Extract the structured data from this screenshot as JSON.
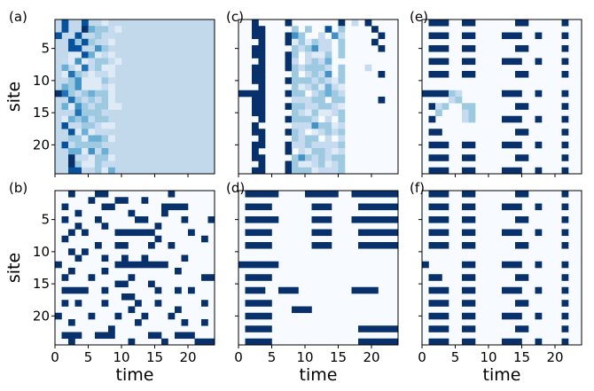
{
  "chart_data": {
    "type": "heatmap",
    "layout": {
      "rows": 2,
      "cols": 3
    },
    "xlabel": "time",
    "ylabel": "site",
    "xlim": [
      0,
      24
    ],
    "ylim": [
      24,
      1
    ],
    "xticks": [
      0,
      5,
      10,
      15,
      20
    ],
    "yticks": [
      5,
      10,
      15,
      20
    ],
    "colormap": {
      "low": "#f7fbff",
      "mid": "#6baed6",
      "high": "#08306b"
    },
    "panels": [
      {
        "label": "(a)",
        "position": [
          0,
          0
        ],
        "show_ylabel": true,
        "show_xlabel": false,
        "grid": [
          "070070010000000000000000",
          "070084332100000000000000",
          "702700322000000000000000",
          "007373021000000000000000",
          "007700530000000000000000",
          "001174121000000000000000",
          "021512332100000000000000",
          "040162311000000000000000",
          "016301221000000000000000",
          "003511132000000000000000",
          "043511121000000000000000",
          "963234331000000000000000",
          "006323231000000000000000",
          "041532331100000000000000",
          "000633320000000000000000",
          "014342330000000000000000",
          "072233211000000000000000",
          "007141220000000000000000",
          "003314431000000000000000",
          "072333300000000000000000",
          "004415240000000000000000",
          "008221331000000000000000",
          "008311322000000000000000",
          "007720314000000000000000"
        ],
        "background_level": 2
      },
      {
        "label": "(b)",
        "position": [
          1,
          0
        ],
        "show_ylabel": true,
        "show_xlabel": true,
        "grid": [
          "009000990000000009000000",
          "000009000990090000000000",
          "090000099000000099990000",
          "000900000009000090000000",
          "090000900000990000090009",
          "000900090000000900000000",
          "009090000999999000009000",
          "090000000000000900000090",
          "000000900990009009000000",
          "009090000000000000000000",
          "000900090090090000090000",
          "900000000999999990000000",
          "009000090000000000900000",
          "090009000009000000000099",
          "000000000990009000000000",
          "099990090000000900909000",
          "000000000099000000000000",
          "090900090000900900000090",
          "000000000009000000900000",
          "900009000900090009000000",
          "009000000000900000090090",
          "000000009000000000000000",
          "099900999000009900999000",
          "009000000009000090000999"
        ],
        "background_level": 0
      },
      {
        "label": "(c)",
        "position": [
          0,
          1
        ],
        "show_ylabel": false,
        "show_xlabel": false,
        "grid": [
          "009000090000000902090000",
          "009900003030070300009000",
          "009900095300205200000900",
          "000900091313220300009000",
          "009900003235220300000900",
          "009900093021130300000000",
          "000900092023240000000000",
          "009900093233320300020000",
          "009900003023250300000900",
          "009900093332321300000000",
          "000900003123142100000000",
          "999900093302343200000000",
          "009900002223303300000900",
          "009900093322332100000000",
          "009900003213112300000000",
          "000900093332020300000000",
          "009000002225331200000000",
          "009900093201232300000000",
          "000900003233020200000000",
          "009900092232222300000000",
          "009000090213321200000000",
          "009900003532323300000000",
          "000900093112312300000000",
          "009900093331222300000000"
        ],
        "background_level": 0
      },
      {
        "label": "(d)",
        "position": [
          1,
          1
        ],
        "show_ylabel": false,
        "show_xlabel": true,
        "grid": [
          "099999000099999009999999",
          "000000000000000000000000",
          "099990000009990000999999",
          "000000000000000000000000",
          "099999000009990009999999",
          "000000000000000000000000",
          "099990000009990000999999",
          "000000000000000000000000",
          "099990000009990000999999",
          "000000000000000000000000",
          "000000000000000000000000",
          "999999000000000000000000",
          "000000000000000000000000",
          "099990000000000000000000",
          "000000000000000000000000",
          "099900999000000009999000",
          "000000000000000000000000",
          "099990000000000000000000",
          "000000009990000000000000",
          "099990000000000000000000",
          "000000000000000000000000",
          "099990000000000000999999",
          "000000000000000000000000",
          "099990000000000000999999"
        ],
        "background_level": 0
      },
      {
        "label": "(e)",
        "position": [
          0,
          2
        ],
        "show_ylabel": false,
        "show_xlabel": false,
        "grid": [
          "099900990000009900000900",
          "000000000000000000000000",
          "099900990000999009000900",
          "000000000000000000000000",
          "099900990000009900000900",
          "000000000000000000000000",
          "099900990000999009000900",
          "000000000000000000000000",
          "099900990000009900000900",
          "000000000000000000000000",
          "000000000000000000000000",
          "999932000000999009000900",
          "000023000000000000000000",
          "092300330000009900000900",
          "003000230000000000000000",
          "090000230000999009000900",
          "000000000000000000000000",
          "099000000000009900000900",
          "000000000000000000000000",
          "099900990000999009000900",
          "000000000000000000000000",
          "099900990000009900000900",
          "000000000000000000000000",
          "099900990000999009000900"
        ],
        "background_level": 0
      },
      {
        "label": "(f)",
        "position": [
          1,
          2
        ],
        "show_ylabel": false,
        "show_xlabel": true,
        "grid": [
          "099900990000009900000900",
          "000000000000000000000000",
          "099900990000999009000900",
          "000000000000000000000000",
          "099900990000009900000900",
          "000000000000000000000000",
          "099900990000999009000900",
          "000000000000000000000000",
          "099900990000009900000900",
          "000000000000000000000000",
          "000000000000000000000000",
          "900000990000999009000900",
          "000000000000000000000000",
          "099000990000009900000900",
          "000000000000000000000000",
          "099900990000999009000900",
          "000000000000000000000000",
          "099900990000009900000900",
          "000000000000000000000000",
          "099900990000999009000900",
          "000000000000000000000000",
          "099900990000009900000900",
          "000000000000000000000000",
          "099900990000999009000900"
        ],
        "background_level": 0
      }
    ]
  }
}
